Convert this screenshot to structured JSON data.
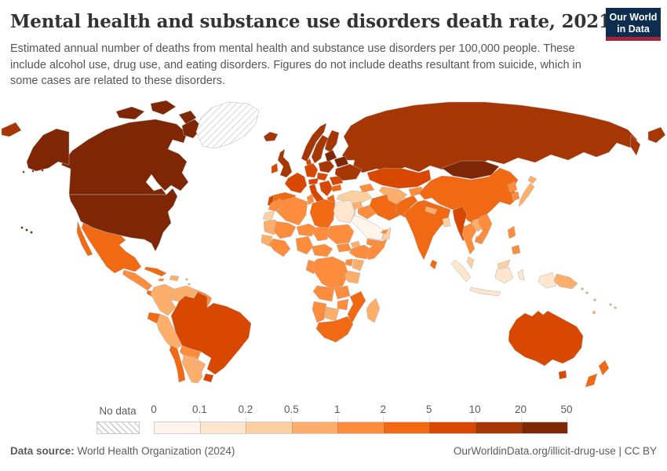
{
  "header": {
    "title": "Mental health and substance use disorders death rate, 2021",
    "subtitle": "Estimated annual number of deaths from mental health and substance use disorders per 100,000 people. These include alcohol use, drug use, and eating disorders. Figures do not include deaths resultant from suicide, which in some cases are related to these disorders.",
    "logo": {
      "line1": "Our World",
      "line2": "in Data",
      "bg": "#0d2e4e",
      "accent": "#a52639"
    }
  },
  "legend": {
    "no_data_label": "No data",
    "tick_labels": [
      "0",
      "0.1",
      "0.2",
      "0.5",
      "1",
      "2",
      "5",
      "10",
      "20",
      "50"
    ],
    "palette": [
      "#fff5eb",
      "#fee6ce",
      "#fdd0a2",
      "#fdae6b",
      "#fd8d3c",
      "#f16913",
      "#d94801",
      "#a63603",
      "#7f2704"
    ],
    "hatch_color": "#cccccc"
  },
  "footer": {
    "source_label": "Data source:",
    "source_value": " World Health Organization (2024)",
    "right_text": "OurWorldinData.org/illicit-drug-use | CC BY"
  },
  "chart_data": {
    "type": "choropleth_map",
    "title": "Mental health and substance use disorders death rate, 2021",
    "unit": "deaths per 100,000 people",
    "year": "2021",
    "legend_bins": [
      0,
      0.1,
      0.2,
      0.5,
      1,
      2,
      5,
      10,
      20,
      50
    ],
    "note": "region values are indices into legend.palette color bins; 'no_data' = hatched",
    "regions": {
      "greenland": "no_data",
      "canada": 8,
      "usa": 8,
      "mexico": 5,
      "central-america": 4,
      "costa-rica-panama": 5,
      "cuba": 5,
      "hispaniola": 3,
      "jamaica": 4,
      "caribbean-islands": 3,
      "colombia": 3,
      "venezuela": 3,
      "guyanas": 4,
      "ecuador": 5,
      "peru": 3,
      "brazil": 6,
      "bolivia": 4,
      "paraguay": 3,
      "chile": 5,
      "argentina": 3,
      "uruguay": 6,
      "iceland": 7,
      "united-kingdom": 7,
      "ireland": 6,
      "norway": 7,
      "sweden": 7,
      "finland": 7,
      "denmark": 6,
      "germany": 6,
      "france": 6,
      "spain": 5,
      "portugal": 6,
      "italy": 6,
      "alpine": 6,
      "poland": 7,
      "central-europe": 6,
      "balkans": 6,
      "greece": 5,
      "romania": 6,
      "bulgaria": 5,
      "baltics": 8,
      "belarus": 8,
      "ukraine": 7,
      "russia": 7,
      "kazakhstan": 6,
      "uzbekistan-turkmenistan": 3,
      "kyrgyzstan-tajikistan": 4,
      "caucasus": 4,
      "mongolia": 8,
      "china": 5,
      "japan": 3,
      "north-korea": 4,
      "south-korea": 4,
      "turkey": 2,
      "syria": 3,
      "iraq": 4,
      "jordan-israel": 2,
      "iran": 5,
      "saudi-arabia": 0,
      "yemen": 4,
      "oman": 2,
      "uae": 4,
      "afghanistan": 3,
      "pakistan": 5,
      "india": 5,
      "nepal": 3,
      "bangladesh": 2,
      "sri-lanka": 5,
      "myanmar": 6,
      "thailand": 4,
      "laos": 3,
      "vietnam": 4,
      "cambodia": 4,
      "malaysia": 2,
      "indonesia": 1,
      "philippines": 4,
      "papua-new-guinea": 3,
      "pacific-islands": 3,
      "morocco": 4,
      "western-sahara": 2,
      "algeria": 4,
      "tunisia": 4,
      "libya": 5,
      "egypt": 1,
      "mauritania": 3,
      "mali": 4,
      "niger": 4,
      "chad": 4,
      "sudan": 4,
      "south-sudan": 4,
      "eritrea": 3,
      "senegal-guinea": 3,
      "west-africa": 4,
      "nigeria": 4,
      "cameroon-car": 4,
      "ethiopia": 4,
      "somalia": 4,
      "kenya": 3,
      "uganda": 4,
      "dr-congo": 4,
      "tanzania": 3,
      "gabon-congo": 4,
      "angola": 4,
      "zambia": 4,
      "mozambique": 5,
      "zimbabwe": 4,
      "botswana": 3,
      "namibia": 4,
      "south-africa": 5,
      "madagascar": 3,
      "australia": 6,
      "new-zealand": 5
    }
  }
}
